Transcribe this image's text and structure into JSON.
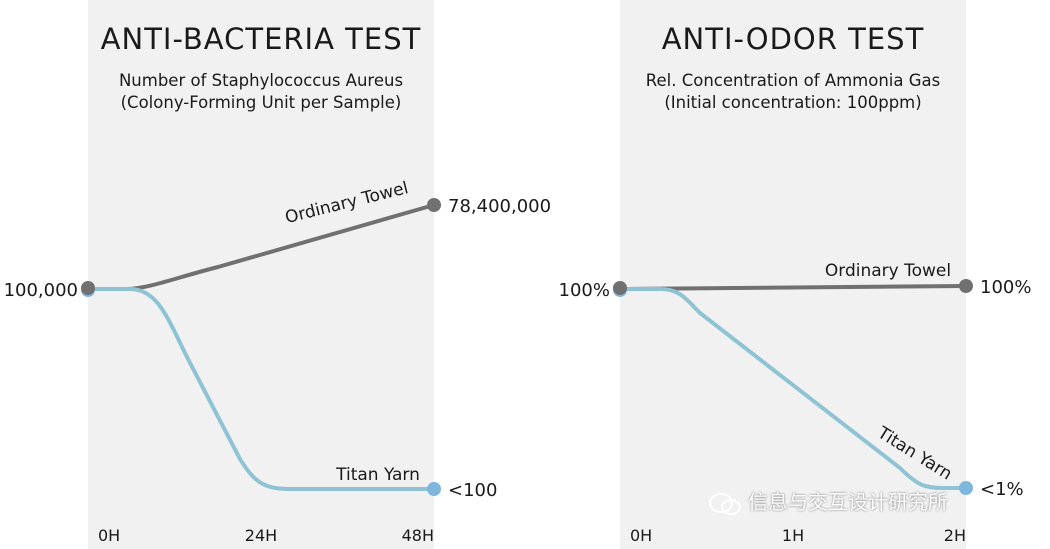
{
  "charts": [
    {
      "title": "ANTI-BACTERIA TEST",
      "subtitle_line1": "Number of Staphylococcus Aureus",
      "subtitle_line2": "(Colony-Forming Unit per Sample)"
    },
    {
      "title": "ANTI-ODOR TEST",
      "subtitle_line1": "Rel. Concentration of Ammonia Gas",
      "subtitle_line2": "(Initial concentration: 100ppm)"
    }
  ],
  "colors": {
    "ordinary": "#707070",
    "titan": "#8ec3d3",
    "titan_dot": "#7fb6de",
    "panel_bg": "#f1f1f1"
  },
  "chart_data": [
    {
      "type": "line",
      "x": [
        "0H",
        "24H",
        "48H"
      ],
      "series": [
        {
          "name": "Ordinary Towel",
          "values": [
            100000,
            8850000,
            78400000
          ],
          "end_label": "78,400,000"
        },
        {
          "name": "Titan Yarn",
          "values": [
            100000,
            100,
            100
          ],
          "end_label": "<100"
        }
      ],
      "start_label": "100,000",
      "yscale": "log"
    },
    {
      "type": "line",
      "x": [
        "0H",
        "1H",
        "2H"
      ],
      "series": [
        {
          "name": "Ordinary Towel",
          "values": [
            100,
            100,
            100
          ],
          "end_label": "100%"
        },
        {
          "name": "Titan Yarn",
          "values": [
            100,
            45,
            1
          ],
          "end_label": "<1%"
        }
      ],
      "start_label": "100%",
      "yscale": "linear"
    }
  ],
  "watermark": "信息与交互设计研究所"
}
